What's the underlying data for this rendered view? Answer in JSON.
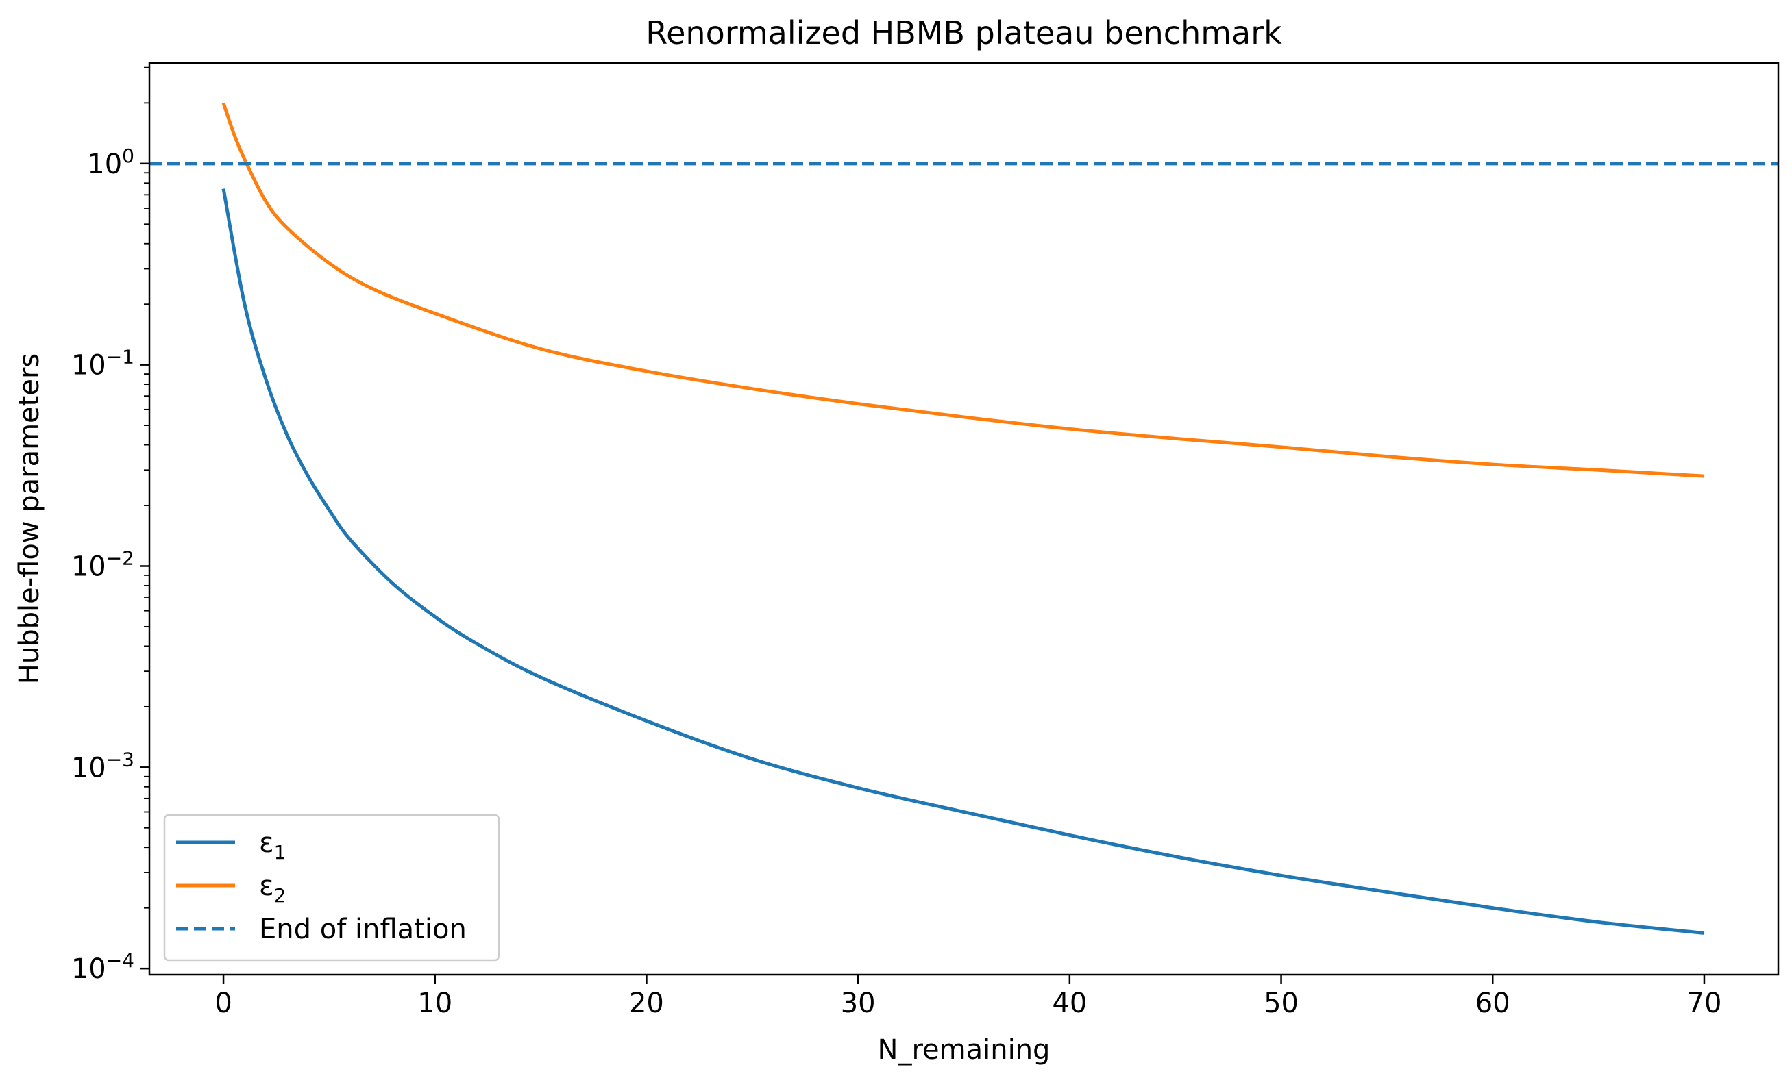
{
  "chart_data": {
    "type": "line",
    "title": "Renormalized HBMB plateau benchmark",
    "xlabel": "N_remaining",
    "ylabel": "Hubble-flow parameters",
    "xlim": [
      -3.5,
      73.5
    ],
    "ylim": [
      9.33e-05,
      3.16
    ],
    "yscale": "log",
    "grid": false,
    "legend_position": "lower-left",
    "x_ticks": [
      0,
      10,
      20,
      30,
      40,
      50,
      60,
      70
    ],
    "x_tick_labels": [
      "0",
      "10",
      "20",
      "30",
      "40",
      "50",
      "60",
      "70"
    ],
    "y_ticks": [
      1,
      0.1,
      0.01,
      0.001,
      0.0001
    ],
    "y_tick_bases": [
      "10",
      "10",
      "10",
      "10",
      "10"
    ],
    "y_tick_exponents": [
      "0",
      "−1",
      "−2",
      "−3",
      "−4"
    ],
    "series": [
      {
        "name": "ε",
        "name_subscript": "1",
        "color": "#1f77b4",
        "style": "solid",
        "x": [
          0,
          1,
          2,
          3,
          4,
          5,
          6,
          8,
          10,
          12,
          15,
          20,
          25,
          30,
          35,
          40,
          45,
          50,
          55,
          60,
          65,
          70
        ],
        "values": [
          0.75,
          0.2,
          0.085,
          0.045,
          0.028,
          0.019,
          0.0135,
          0.0082,
          0.0056,
          0.0041,
          0.0028,
          0.0017,
          0.0011,
          0.00079,
          0.0006,
          0.00046,
          0.00036,
          0.00029,
          0.00024,
          0.0002,
          0.00017,
          0.00015
        ]
      },
      {
        "name": "ε",
        "name_subscript": "2",
        "color": "#ff7f0e",
        "style": "solid",
        "x": [
          0,
          0.5,
          1,
          2,
          3,
          5,
          7,
          10,
          15,
          20,
          25,
          30,
          35,
          40,
          45,
          50,
          55,
          60,
          65,
          70
        ],
        "values": [
          2.0,
          1.4,
          1.05,
          0.65,
          0.48,
          0.32,
          0.24,
          0.18,
          0.12,
          0.093,
          0.076,
          0.064,
          0.055,
          0.048,
          0.043,
          0.039,
          0.035,
          0.032,
          0.03,
          0.028
        ]
      },
      {
        "name": "End of inflation",
        "color": "#1f77b4",
        "style": "dashed",
        "x": [
          -3.5,
          73.5
        ],
        "values": [
          1,
          1
        ]
      }
    ]
  }
}
